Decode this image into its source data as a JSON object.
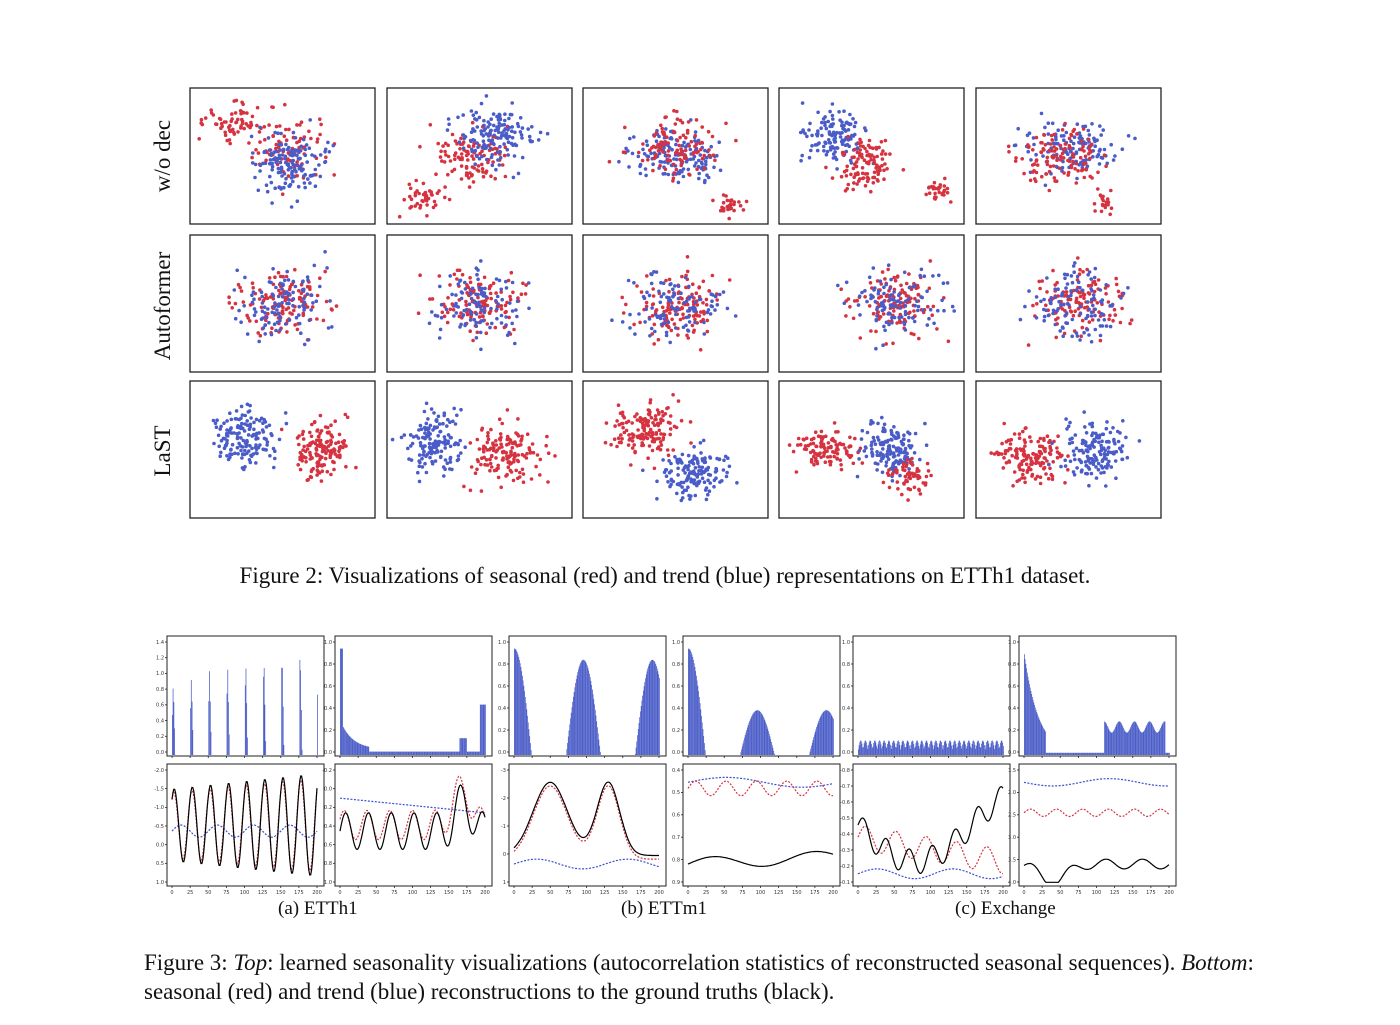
{
  "figure2": {
    "row_labels": [
      "w/o dec",
      "Autoformer",
      "LaST"
    ],
    "caption": {
      "number": "Figure 2:",
      "text": "Visualizations of seasonal (red) and trend (blue) representations on ETTh1 dataset."
    },
    "colors": {
      "seasonal": "#d63341",
      "trend": "#4a5cc7"
    }
  },
  "figure3": {
    "sub_captions": [
      "(a) ETTh1",
      "(b) ETTm1",
      "(c) Exchange"
    ],
    "caption": {
      "number": "Figure 3:",
      "top_word": "Top",
      "top_text": ": learned seasonality visualizations (autocorrelation statistics of reconstructed seasonal sequences).",
      "bottom_word": "Bottom",
      "bottom_text": ": seasonal (red) and trend (blue) reconstructions to the ground truths (black)."
    },
    "colors": {
      "bars": "#4a5cc7",
      "seasonal": "#d63341",
      "trend": "#3b4fd0",
      "truth": "#000000"
    },
    "x_ticks": [
      "0",
      "25",
      "50",
      "75",
      "100",
      "125",
      "150",
      "175",
      "200"
    ],
    "panels": [
      {
        "top_y_ticks": [
          "0.0",
          "0.2",
          "0.4",
          "0.6",
          "0.8",
          "1.0",
          "1.2",
          "1.4"
        ],
        "bottom_y_ticks": [
          "1.0",
          "0.5",
          "0.0",
          "-0.5",
          "-1.0",
          "-1.5",
          "-2.0"
        ]
      },
      {
        "top_y_ticks": [
          "0.0",
          "0.2",
          "0.4",
          "0.6",
          "0.8",
          "1.0"
        ],
        "bottom_y_ticks": [
          "1.0",
          "0.8",
          "0.6",
          "0.4",
          "0.2",
          "0.0",
          "-0.2"
        ]
      },
      {
        "top_y_ticks": [
          "0.0",
          "0.2",
          "0.4",
          "0.6",
          "0.8",
          "1.0"
        ],
        "bottom_y_ticks": [
          "1",
          "0",
          "-1",
          "-2",
          "-3"
        ]
      },
      {
        "top_y_ticks": [
          "0.0",
          "0.2",
          "0.4",
          "0.6",
          "0.8",
          "1.0"
        ],
        "bottom_y_ticks": [
          "0.9",
          "0.8",
          "0.7",
          "0.6",
          "0.5",
          "0.4"
        ]
      },
      {
        "top_y_ticks": [
          "0.0",
          "0.2",
          "0.4",
          "0.6",
          "0.8",
          "1.0"
        ],
        "bottom_y_ticks": [
          "-0.1",
          "-0.2",
          "-0.3",
          "-0.4",
          "-0.5",
          "-0.6",
          "-0.7",
          "-0.8"
        ]
      },
      {
        "top_y_ticks": [
          "0.0",
          "0.2",
          "0.4",
          "0.6",
          "0.8",
          "1.0"
        ],
        "bottom_y_ticks": [
          "4.0",
          "3.5",
          "3.0",
          "2.5",
          "2.0",
          "1.5"
        ]
      }
    ]
  }
}
